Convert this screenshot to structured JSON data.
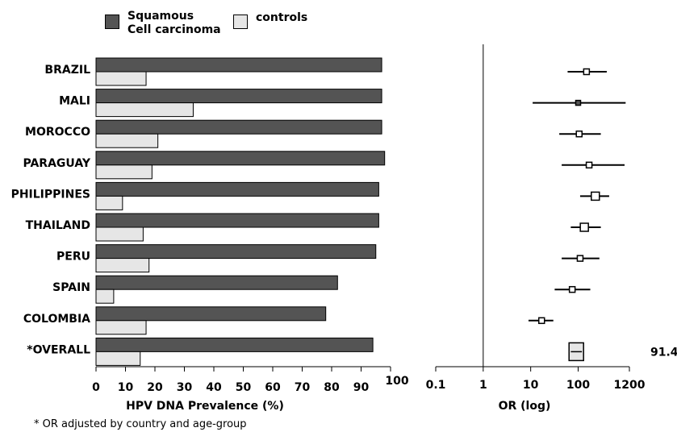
{
  "legend": {
    "squamous_line1": "Squamous",
    "squamous_line2": "Cell carcinoma",
    "controls": "controls"
  },
  "colors": {
    "squamous": "#545454",
    "controls": "#e6e6e6",
    "or_box": "#ffffff"
  },
  "footnote": "* OR adjusted by country and age-group",
  "chart_data": [
    {
      "type": "bar",
      "orientation": "horizontal",
      "categories": [
        "BRAZIL",
        "MALI",
        "MOROCCO",
        "PARAGUAY",
        "PHILIPPINES",
        "THAILAND",
        "PERU",
        "SPAIN",
        "COLOMBIA",
        "*OVERALL"
      ],
      "series": [
        {
          "name": "Squamous Cell carcinoma",
          "values": [
            97,
            97,
            97,
            98,
            96,
            96,
            95,
            82,
            78,
            94
          ]
        },
        {
          "name": "controls",
          "values": [
            17,
            33,
            21,
            19,
            9,
            16,
            18,
            6,
            17,
            15
          ]
        }
      ],
      "xlabel": "HPV DNA Prevalence (%)",
      "xlim": [
        0,
        100
      ],
      "xticks": [
        "0",
        "10",
        "20",
        "30",
        "40",
        "50",
        "60",
        "70",
        "80",
        "90",
        "100"
      ]
    },
    {
      "type": "scatter",
      "subtype": "forest-plot",
      "xscale": "log",
      "xlabel": "OR (log)",
      "xlim": [
        0.1,
        1200
      ],
      "xticks": [
        {
          "value": 0.1,
          "label": "0.1"
        },
        {
          "value": 1,
          "label": "1"
        },
        {
          "value": 10,
          "label": "10"
        },
        {
          "value": 100,
          "label": "100"
        },
        {
          "value": 1200,
          "label": "1200"
        }
      ],
      "reference_line": 1,
      "categories": [
        "BRAZIL",
        "MALI",
        "MOROCCO",
        "PARAGUAY",
        "PHILIPPINES",
        "THAILAND",
        "PERU",
        "SPAIN",
        "COLOMBIA",
        "*OVERALL"
      ],
      "or": [
        150,
        100,
        105,
        170,
        230,
        135,
        110,
        75,
        17,
        91.4
      ],
      "ci_low": [
        60,
        11,
        40,
        45,
        110,
        70,
        45,
        32,
        9,
        70
      ],
      "ci_high": [
        400,
        1000,
        300,
        950,
        450,
        300,
        280,
        180,
        30,
        120
      ],
      "overall_label": "91.4"
    }
  ]
}
